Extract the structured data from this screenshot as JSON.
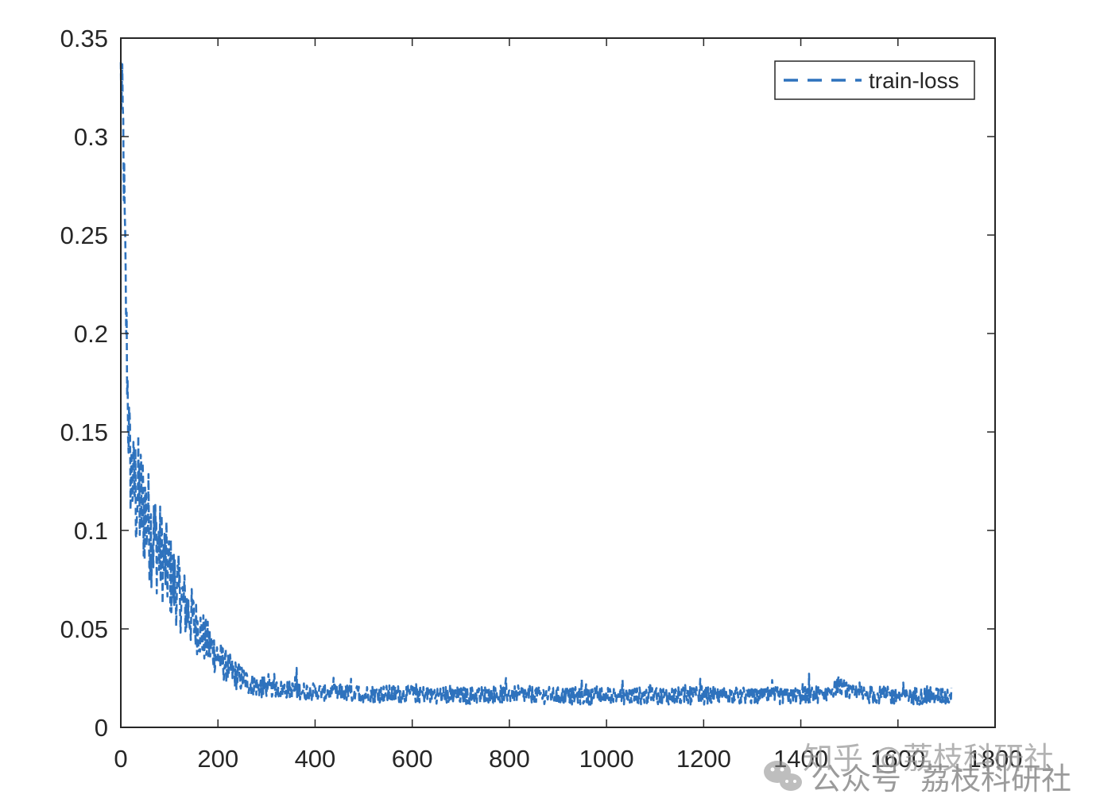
{
  "chart_data": {
    "type": "line",
    "title": "",
    "xlabel": "",
    "ylabel": "",
    "xlim": [
      0,
      1800
    ],
    "ylim": [
      0,
      0.35
    ],
    "grid": false,
    "legend_position": "upper right",
    "x_ticks": [
      0,
      200,
      400,
      600,
      800,
      1000,
      1200,
      1400,
      1600,
      1800
    ],
    "x_tick_labels": [
      "0",
      "200",
      "400",
      "600",
      "800",
      "1000",
      "1200",
      "1400",
      "1600",
      "1800"
    ],
    "y_ticks": [
      0,
      0.05,
      0.1,
      0.15,
      0.2,
      0.25,
      0.3,
      0.35
    ],
    "y_tick_labels": [
      "0",
      "0.05",
      "0.1",
      "0.15",
      "0.2",
      "0.25",
      "0.3",
      "0.35"
    ],
    "series": [
      {
        "name": "train-loss",
        "line_style": "dashed",
        "color": "#2e72bd",
        "x": [
          0,
          5,
          10,
          15,
          20,
          30,
          40,
          50,
          60,
          80,
          100,
          120,
          140,
          160,
          180,
          200,
          220,
          240,
          260,
          280,
          300,
          350,
          400,
          500,
          600,
          700,
          800,
          900,
          1000,
          1100,
          1200,
          1300,
          1400,
          1450,
          1480,
          1500,
          1600,
          1710
        ],
        "values": [
          0.33,
          0.3,
          0.22,
          0.16,
          0.13,
          0.12,
          0.115,
          0.11,
          0.1,
          0.09,
          0.078,
          0.068,
          0.058,
          0.05,
          0.042,
          0.036,
          0.03,
          0.026,
          0.023,
          0.021,
          0.02,
          0.019,
          0.018,
          0.017,
          0.017,
          0.016,
          0.017,
          0.016,
          0.016,
          0.016,
          0.016,
          0.016,
          0.016,
          0.017,
          0.022,
          0.017,
          0.016,
          0.016
        ]
      }
    ]
  },
  "legend": {
    "entries": [
      {
        "label": "train-loss",
        "line_style": "dashed",
        "color": "#2e72bd"
      }
    ]
  },
  "watermark": {
    "line1": "知乎 @荔枝科研社",
    "line2_prefix": "公众号",
    "line2_name": "荔枝科研社"
  }
}
